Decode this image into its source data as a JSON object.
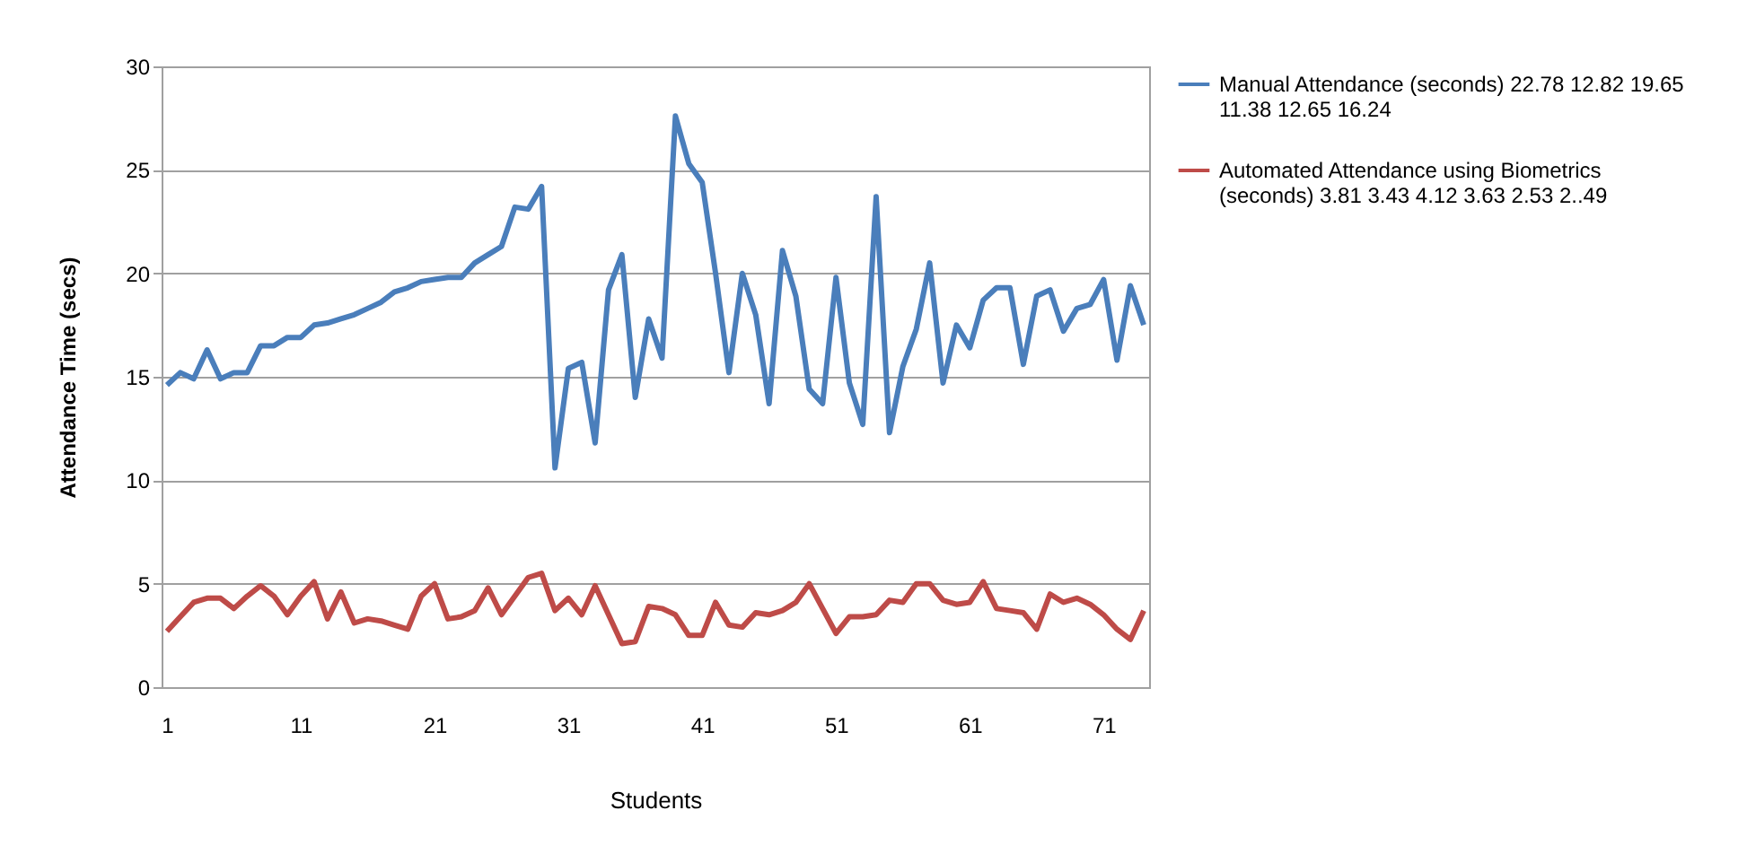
{
  "chart_data": {
    "type": "line",
    "xlabel": "Students",
    "ylabel": "Attendance Time (secs)",
    "categories": [
      "1",
      null,
      null,
      null,
      null,
      null,
      null,
      null,
      null,
      null,
      "11",
      null,
      null,
      null,
      null,
      null,
      null,
      null,
      null,
      null,
      "21",
      null,
      null,
      null,
      null,
      null,
      null,
      null,
      null,
      null,
      "31",
      null,
      null,
      null,
      null,
      null,
      null,
      null,
      null,
      null,
      "41",
      null,
      null,
      null,
      null,
      null,
      null,
      null,
      null,
      null,
      "51",
      null,
      null,
      null,
      null,
      null,
      null,
      null,
      null,
      null,
      "61",
      null,
      null,
      null,
      null,
      null,
      null,
      null,
      null,
      null,
      "71",
      null,
      null,
      null
    ],
    "series": [
      {
        "name": "Manual Attendance (seconds) 22.78 12.82 19.65 11.38 12.65 16.24",
        "color": "#4a7ebb",
        "values": [
          14.6,
          15.2,
          14.9,
          16.3,
          14.9,
          15.2,
          15.2,
          16.5,
          16.5,
          16.9,
          16.9,
          17.5,
          17.6,
          17.8,
          18.0,
          18.3,
          18.6,
          19.1,
          19.3,
          19.6,
          19.7,
          19.8,
          19.8,
          20.5,
          20.9,
          21.3,
          23.2,
          23.1,
          24.2,
          10.6,
          15.4,
          15.7,
          11.8,
          19.2,
          20.9,
          14.0,
          17.8,
          15.9,
          27.6,
          25.3,
          24.4,
          20.0,
          15.2,
          20.0,
          18.0,
          13.7,
          21.1,
          18.9,
          14.4,
          13.7,
          19.8,
          14.7,
          12.7,
          23.7,
          12.3,
          15.5,
          17.3,
          20.5,
          14.7,
          17.5,
          16.4,
          18.7,
          19.3,
          19.3,
          15.6,
          18.9,
          19.2,
          17.2,
          18.3,
          18.5,
          19.7,
          15.8,
          19.4,
          17.5
        ]
      },
      {
        "name": "Automated Attendance using Biometrics (seconds) 3.81 3.43 4.12 3.63 2.53 2..49",
        "color": "#be4b48",
        "values": [
          2.7,
          3.4,
          4.1,
          4.3,
          4.3,
          3.8,
          4.4,
          4.9,
          4.4,
          3.5,
          4.4,
          5.1,
          3.3,
          4.6,
          3.1,
          3.3,
          3.2,
          3.0,
          2.8,
          4.4,
          5.0,
          3.3,
          3.4,
          3.7,
          4.8,
          3.5,
          4.4,
          5.3,
          5.5,
          3.7,
          4.3,
          3.5,
          4.9,
          3.5,
          2.1,
          2.2,
          3.9,
          3.8,
          3.5,
          2.5,
          2.5,
          4.1,
          3.0,
          2.9,
          3.6,
          3.5,
          3.7,
          4.1,
          5.0,
          3.8,
          2.6,
          3.4,
          3.4,
          3.5,
          4.2,
          4.1,
          5.0,
          5.0,
          4.2,
          4.0,
          4.1,
          5.1,
          3.8,
          3.7,
          3.6,
          2.8,
          4.5,
          4.1,
          4.3,
          4.0,
          3.5,
          2.8,
          2.3,
          3.7
        ]
      }
    ],
    "ylim": [
      0,
      30
    ],
    "yticks": [
      0,
      5,
      10,
      15,
      20,
      25,
      30
    ],
    "grid": "y",
    "legend": "right",
    "marker": "none",
    "line_style": "solid"
  }
}
